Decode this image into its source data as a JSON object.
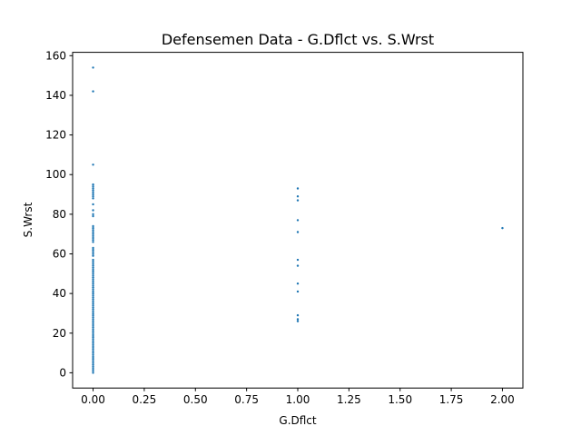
{
  "chart_data": {
    "type": "scatter",
    "title": "Defensemen Data - G.Dflct vs. S.Wrst",
    "xlabel": "G.Dflct",
    "ylabel": "S.Wrst",
    "xlim": [
      -0.1,
      2.1
    ],
    "ylim": [
      -7.7,
      161.7
    ],
    "xticks": [
      0.0,
      0.25,
      0.5,
      0.75,
      1.0,
      1.25,
      1.5,
      1.75,
      2.0
    ],
    "xtick_labels": [
      "0.00",
      "0.25",
      "0.50",
      "0.75",
      "1.00",
      "1.25",
      "1.50",
      "1.75",
      "2.00"
    ],
    "yticks": [
      0,
      20,
      40,
      60,
      80,
      100,
      120,
      140,
      160
    ],
    "ytick_labels": [
      "0",
      "20",
      "40",
      "60",
      "80",
      "100",
      "120",
      "140",
      "160"
    ],
    "grid": false,
    "point_color": "#1f77b4",
    "points": [
      {
        "x": 0,
        "y": 154
      },
      {
        "x": 0,
        "y": 142
      },
      {
        "x": 0,
        "y": 105
      },
      {
        "x": 0,
        "y": 95
      },
      {
        "x": 0,
        "y": 94
      },
      {
        "x": 0,
        "y": 93
      },
      {
        "x": 0,
        "y": 92
      },
      {
        "x": 0,
        "y": 91
      },
      {
        "x": 0,
        "y": 90
      },
      {
        "x": 0,
        "y": 89
      },
      {
        "x": 0,
        "y": 88
      },
      {
        "x": 0,
        "y": 85
      },
      {
        "x": 0,
        "y": 82
      },
      {
        "x": 0,
        "y": 80
      },
      {
        "x": 0,
        "y": 79
      },
      {
        "x": 0,
        "y": 74
      },
      {
        "x": 0,
        "y": 73
      },
      {
        "x": 0,
        "y": 72
      },
      {
        "x": 0,
        "y": 71
      },
      {
        "x": 0,
        "y": 70
      },
      {
        "x": 0,
        "y": 69
      },
      {
        "x": 0,
        "y": 68
      },
      {
        "x": 0,
        "y": 67
      },
      {
        "x": 0,
        "y": 66
      },
      {
        "x": 0,
        "y": 63
      },
      {
        "x": 0,
        "y": 62
      },
      {
        "x": 0,
        "y": 61
      },
      {
        "x": 0,
        "y": 60
      },
      {
        "x": 0,
        "y": 59
      },
      {
        "x": 0,
        "y": 57
      },
      {
        "x": 0,
        "y": 56
      },
      {
        "x": 0,
        "y": 55
      },
      {
        "x": 0,
        "y": 54
      },
      {
        "x": 0,
        "y": 53
      },
      {
        "x": 0,
        "y": 52
      },
      {
        "x": 0,
        "y": 51
      },
      {
        "x": 0,
        "y": 50
      },
      {
        "x": 0,
        "y": 49
      },
      {
        "x": 0,
        "y": 48
      },
      {
        "x": 0,
        "y": 47
      },
      {
        "x": 0,
        "y": 46
      },
      {
        "x": 0,
        "y": 45
      },
      {
        "x": 0,
        "y": 44
      },
      {
        "x": 0,
        "y": 43
      },
      {
        "x": 0,
        "y": 42
      },
      {
        "x": 0,
        "y": 41
      },
      {
        "x": 0,
        "y": 40
      },
      {
        "x": 0,
        "y": 39
      },
      {
        "x": 0,
        "y": 38
      },
      {
        "x": 0,
        "y": 37
      },
      {
        "x": 0,
        "y": 36
      },
      {
        "x": 0,
        "y": 35
      },
      {
        "x": 0,
        "y": 34
      },
      {
        "x": 0,
        "y": 33
      },
      {
        "x": 0,
        "y": 32
      },
      {
        "x": 0,
        "y": 31
      },
      {
        "x": 0,
        "y": 30
      },
      {
        "x": 0,
        "y": 29
      },
      {
        "x": 0,
        "y": 28
      },
      {
        "x": 0,
        "y": 27
      },
      {
        "x": 0,
        "y": 26
      },
      {
        "x": 0,
        "y": 25
      },
      {
        "x": 0,
        "y": 24
      },
      {
        "x": 0,
        "y": 23
      },
      {
        "x": 0,
        "y": 22
      },
      {
        "x": 0,
        "y": 21
      },
      {
        "x": 0,
        "y": 20
      },
      {
        "x": 0,
        "y": 19
      },
      {
        "x": 0,
        "y": 18
      },
      {
        "x": 0,
        "y": 17
      },
      {
        "x": 0,
        "y": 16
      },
      {
        "x": 0,
        "y": 15
      },
      {
        "x": 0,
        "y": 14
      },
      {
        "x": 0,
        "y": 13
      },
      {
        "x": 0,
        "y": 12
      },
      {
        "x": 0,
        "y": 11
      },
      {
        "x": 0,
        "y": 10
      },
      {
        "x": 0,
        "y": 9
      },
      {
        "x": 0,
        "y": 8
      },
      {
        "x": 0,
        "y": 7
      },
      {
        "x": 0,
        "y": 6
      },
      {
        "x": 0,
        "y": 5
      },
      {
        "x": 0,
        "y": 4
      },
      {
        "x": 0,
        "y": 3
      },
      {
        "x": 0,
        "y": 2
      },
      {
        "x": 0,
        "y": 1
      },
      {
        "x": 0,
        "y": 0
      },
      {
        "x": 1,
        "y": 93
      },
      {
        "x": 1,
        "y": 89
      },
      {
        "x": 1,
        "y": 87
      },
      {
        "x": 1,
        "y": 77
      },
      {
        "x": 1,
        "y": 71
      },
      {
        "x": 1,
        "y": 57
      },
      {
        "x": 1,
        "y": 54
      },
      {
        "x": 1,
        "y": 45
      },
      {
        "x": 1,
        "y": 41
      },
      {
        "x": 1,
        "y": 29
      },
      {
        "x": 1,
        "y": 27
      },
      {
        "x": 1,
        "y": 26
      },
      {
        "x": 2,
        "y": 73
      }
    ]
  }
}
